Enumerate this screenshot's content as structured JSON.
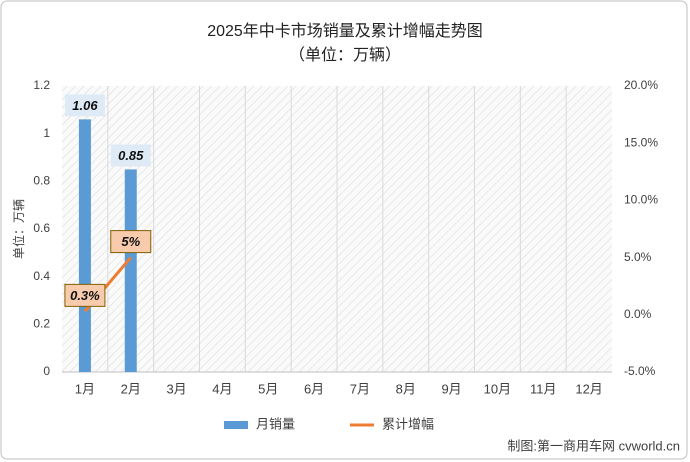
{
  "chart_data": {
    "type": "bar",
    "title": "2025年中卡市场销量及累计增幅走势图",
    "subtitle": "（单位：万辆）",
    "y_label": "单位：万辆",
    "source": "制图:第一商用车网 cvworld.cn",
    "categories": [
      "1月",
      "2月",
      "3月",
      "4月",
      "5月",
      "6月",
      "7月",
      "8月",
      "9月",
      "10月",
      "11月",
      "12月"
    ],
    "series": [
      {
        "name": "月销量",
        "type": "bar",
        "color": "#5b9bd5",
        "values": [
          1.06,
          0.85,
          null,
          null,
          null,
          null,
          null,
          null,
          null,
          null,
          null,
          null
        ]
      },
      {
        "name": "累计增幅",
        "type": "line",
        "axis": "y2",
        "color": "#ed7d31",
        "values": [
          0.3,
          5,
          null,
          null,
          null,
          null,
          null,
          null,
          null,
          null,
          null,
          null
        ],
        "value_labels": [
          "0.3%",
          "5%",
          null,
          null,
          null,
          null,
          null,
          null,
          null,
          null,
          null,
          null
        ]
      }
    ],
    "ylim": [
      0,
      1.2
    ],
    "yticks": [
      0,
      0.2,
      0.4,
      0.6,
      0.8,
      1,
      1.2
    ],
    "y2lim": [
      -5,
      20
    ],
    "y2ticks": [
      {
        "value": -5,
        "label": "-5.0%"
      },
      {
        "value": 0,
        "label": "0.0%"
      },
      {
        "value": 5,
        "label": "5.0%"
      },
      {
        "value": 10,
        "label": "10.0%"
      },
      {
        "value": 15,
        "label": "15.0%"
      },
      {
        "value": 20,
        "label": "20.0%"
      }
    ],
    "grid": true,
    "legend": "bottom"
  }
}
